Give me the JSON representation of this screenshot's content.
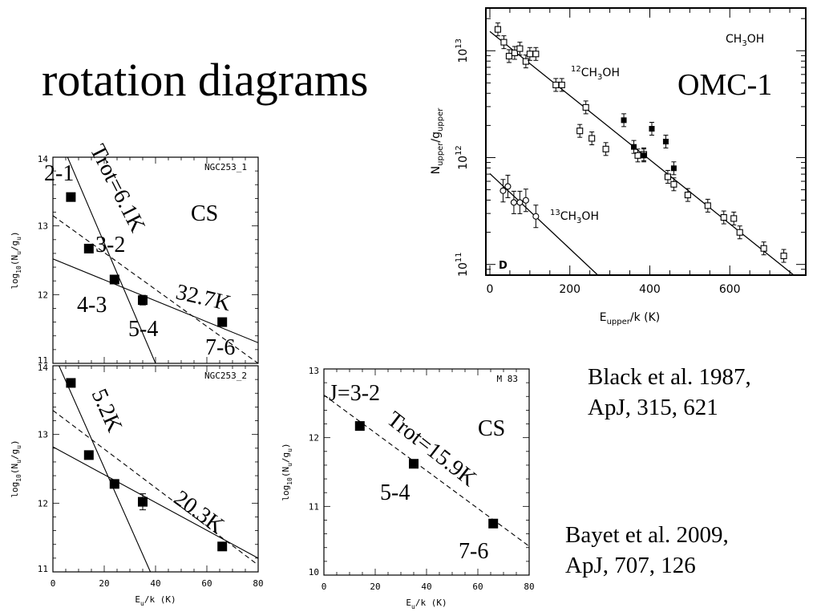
{
  "slide": {
    "title": "rotation diagrams",
    "references": [
      {
        "line1": "Black et al. 1987,",
        "line2": "ApJ, 315, 621"
      },
      {
        "line1": "Bayet et al. 2009,",
        "line2": "ApJ, 707, 126"
      }
    ]
  },
  "chart_data": [
    {
      "id": "omc1",
      "type": "scatter",
      "title": "CH3OH",
      "title_parts": [
        "CH",
        "3",
        "OH"
      ],
      "overlay_label": "OMC-1",
      "panel_letter": "D",
      "xlabel": "E_upper/k  (K)",
      "xlabel_parts": [
        "E",
        "upper",
        "/k  (K)"
      ],
      "ylabel": "N_upper/g_upper",
      "ylabel_parts": [
        "N",
        "upper",
        "/g",
        "upper"
      ],
      "xlim": [
        -10,
        790
      ],
      "ylim_log10": [
        10.9,
        13.4
      ],
      "log_y": true,
      "x_ticks": [
        0,
        200,
        400,
        600
      ],
      "y_ticks": [
        {
          "value": 11,
          "label_base": "10",
          "label_exp": "11"
        },
        {
          "value": 12,
          "label_base": "10",
          "label_exp": "12"
        },
        {
          "value": 13,
          "label_base": "10",
          "label_exp": "13"
        }
      ],
      "series": [
        {
          "name": "12CH3OH",
          "name_parts": [
            "12",
            "CH",
            "3",
            "OH"
          ],
          "marker": "open-square",
          "points": [
            [
              20,
              13.2
            ],
            [
              35,
              13.08
            ],
            [
              48,
              12.95
            ],
            [
              62,
              12.98
            ],
            [
              75,
              13.02
            ],
            [
              90,
              12.9
            ],
            [
              100,
              12.97
            ],
            [
              115,
              12.97
            ],
            [
              165,
              12.68
            ],
            [
              180,
              12.68
            ],
            [
              240,
              12.47
            ],
            [
              225,
              12.25
            ],
            [
              255,
              12.18
            ],
            [
              290,
              12.08
            ],
            [
              370,
              12.02
            ],
            [
              385,
              12.03
            ],
            [
              445,
              11.82
            ],
            [
              460,
              11.75
            ],
            [
              495,
              11.65
            ],
            [
              545,
              11.55
            ],
            [
              585,
              11.44
            ],
            [
              610,
              11.43
            ],
            [
              625,
              11.3
            ],
            [
              685,
              11.15
            ],
            [
              735,
              11.08
            ]
          ],
          "fit": [
            [
              0,
              13.18
            ],
            [
              760,
              10.9
            ]
          ]
        },
        {
          "name": "12CH3OH filled",
          "marker": "filled-square",
          "points": [
            [
              335,
              12.35
            ],
            [
              360,
              12.1
            ],
            [
              385,
              12.02
            ],
            [
              405,
              12.27
            ],
            [
              440,
              12.15
            ],
            [
              460,
              11.9
            ]
          ]
        },
        {
          "name": "13CH3OH",
          "name_parts": [
            "13",
            "CH",
            "3",
            "OH"
          ],
          "marker": "open-circle",
          "points": [
            [
              33,
              11.69
            ],
            [
              45,
              11.73
            ],
            [
              60,
              11.58
            ],
            [
              75,
              11.58
            ],
            [
              90,
              11.6
            ],
            [
              115,
              11.45
            ]
          ],
          "fit": [
            [
              0,
              11.85
            ],
            [
              270,
              10.9
            ]
          ]
        }
      ]
    },
    {
      "id": "ngc253_1",
      "type": "scatter",
      "title": "NGC253_1",
      "molecule_label": "CS",
      "ylabel": "log10(Nu/gu)",
      "xlim": [
        0,
        80
      ],
      "ylim": [
        11,
        14
      ],
      "x_ticks": [],
      "y_ticks": [
        11,
        12,
        13,
        14
      ],
      "points": [
        {
          "x": 7,
          "y": 13.42,
          "label": "2-1"
        },
        {
          "x": 14,
          "y": 12.67,
          "label": "3-2"
        },
        {
          "x": 24,
          "y": 12.22,
          "label": "4-3"
        },
        {
          "x": 35,
          "y": 11.92,
          "label": "5-4"
        },
        {
          "x": 66,
          "y": 11.6,
          "label": "7-6"
        }
      ],
      "fits": [
        {
          "style": "solid",
          "label": "Trot=6.1K",
          "points": [
            [
              0,
              14.5
            ],
            [
              40,
              11
            ]
          ]
        },
        {
          "style": "solid",
          "label": "32.7K",
          "points": [
            [
              0,
              12.52
            ],
            [
              80,
              11.3
            ]
          ]
        },
        {
          "style": "dashed",
          "points": [
            [
              0,
              13.15
            ],
            [
              80,
              11
            ]
          ]
        }
      ]
    },
    {
      "id": "ngc253_2",
      "type": "scatter",
      "title": "NGC253_2",
      "ylabel": "log10(Nu/gu)",
      "xlabel": "Eu/k (K)",
      "xlim": [
        0,
        80
      ],
      "ylim": [
        11,
        14
      ],
      "x_ticks": [
        0,
        20,
        40,
        60,
        80
      ],
      "y_ticks": [
        11,
        12,
        13,
        14
      ],
      "points": [
        {
          "x": 7,
          "y": 13.75
        },
        {
          "x": 14,
          "y": 12.7
        },
        {
          "x": 24,
          "y": 12.28
        },
        {
          "x": 35,
          "y": 12.02
        },
        {
          "x": 66,
          "y": 11.37
        }
      ],
      "fits": [
        {
          "style": "solid",
          "label": "5.2K",
          "points": [
            [
              0,
              14.2
            ],
            [
              38,
              11
            ]
          ]
        },
        {
          "style": "solid",
          "label": "20.3K",
          "points": [
            [
              0,
              12.82
            ],
            [
              80,
              11.2
            ]
          ]
        },
        {
          "style": "dashed",
          "points": [
            [
              0,
              13.35
            ],
            [
              80,
              11.1
            ]
          ]
        }
      ]
    },
    {
      "id": "m83",
      "type": "scatter",
      "title": "M 83",
      "molecule_label": "CS",
      "ylabel": "log10(Nu/gu)",
      "xlabel": "Eu/k (K)",
      "xlim": [
        0,
        80
      ],
      "ylim": [
        10,
        13
      ],
      "x_ticks": [
        0,
        20,
        40,
        60,
        80
      ],
      "y_ticks": [
        10,
        11,
        12,
        13
      ],
      "points": [
        {
          "x": 14,
          "y": 12.17,
          "label": "J=3-2"
        },
        {
          "x": 35,
          "y": 11.62,
          "label": "5-4"
        },
        {
          "x": 66,
          "y": 10.75,
          "label": "7-6"
        }
      ],
      "fits": [
        {
          "style": "dashed",
          "label": "Trot=15.9K",
          "points": [
            [
              0,
              12.62
            ],
            [
              80,
              10.42
            ]
          ]
        }
      ]
    }
  ]
}
